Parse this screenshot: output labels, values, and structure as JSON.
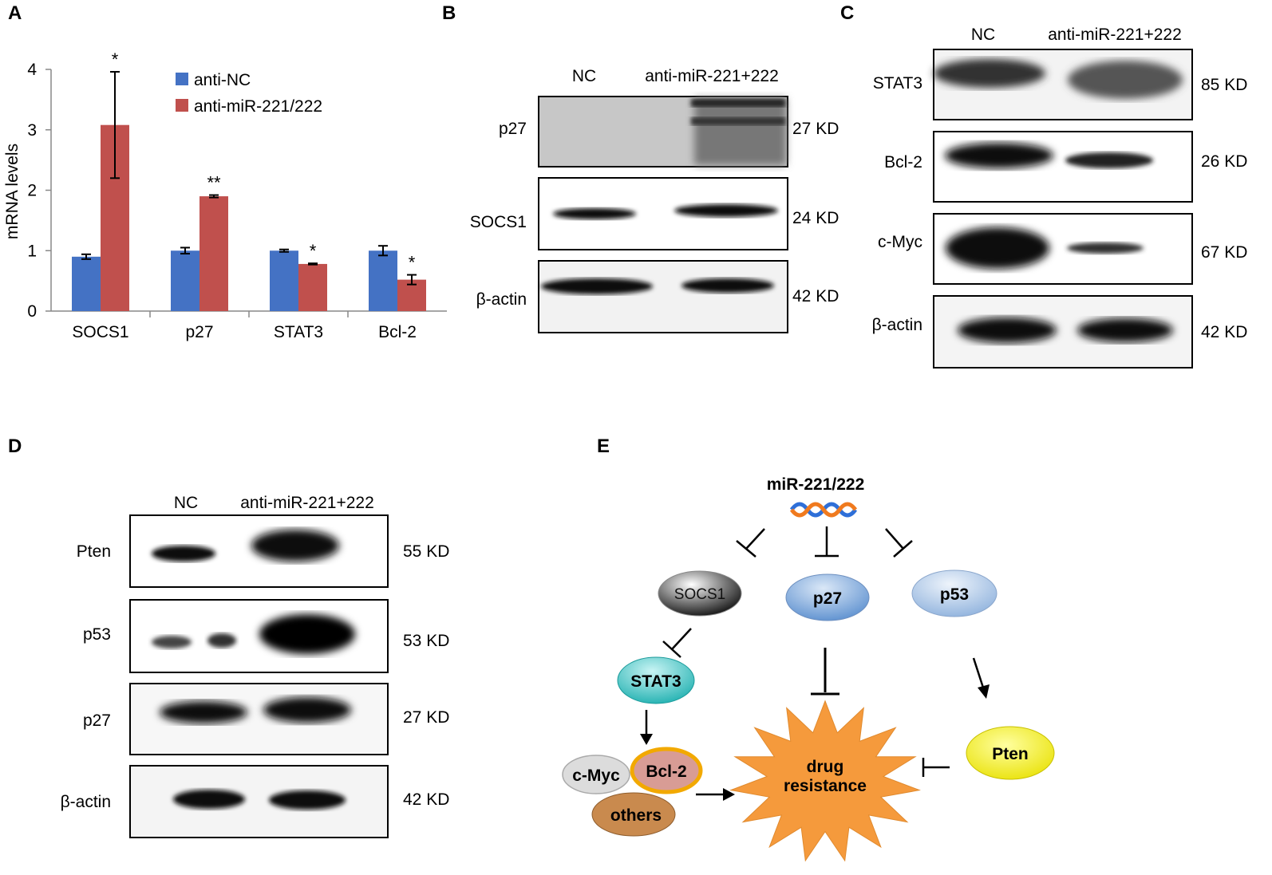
{
  "panels": {
    "a": "A",
    "b": "B",
    "c": "C",
    "d": "D",
    "e": "E"
  },
  "chart_data": {
    "type": "bar",
    "categories": [
      "SOCS1",
      "p27",
      "STAT3",
      "Bcl-2"
    ],
    "ylabel": "mRNA levels",
    "xlabel": "",
    "ylim": [
      0,
      4
    ],
    "yticks": [
      "0",
      "1",
      "2",
      "3",
      "4"
    ],
    "legend_position": "top-right",
    "series": [
      {
        "name": "anti-NC",
        "color": "#4472C4",
        "values": [
          0.9,
          1.0,
          1.0,
          1.0
        ],
        "errors": [
          0.04,
          0.05,
          0.02,
          0.08
        ]
      },
      {
        "name": "anti-miR-221/222",
        "color": "#C0504D",
        "values": [
          3.08,
          1.9,
          0.78,
          0.52
        ],
        "errors": [
          0.88,
          0.02,
          0.01,
          0.08
        ],
        "significance": [
          "*",
          "**",
          "*",
          "*"
        ]
      }
    ]
  },
  "blot_b": {
    "lanes": [
      "NC",
      "anti-miR-221+222"
    ],
    "rows": [
      {
        "protein": "p27",
        "size": "27 KD"
      },
      {
        "protein": "SOCS1",
        "size": "24 KD"
      },
      {
        "protein": "β-actin",
        "size": "42 KD"
      }
    ]
  },
  "blot_c": {
    "lanes": [
      "NC",
      "anti-miR-221+222"
    ],
    "rows": [
      {
        "protein": "STAT3",
        "size": "85 KD"
      },
      {
        "protein": "Bcl-2",
        "size": "26 KD"
      },
      {
        "protein": "c-Myc",
        "size": "67 KD"
      },
      {
        "protein": "β-actin",
        "size": "42 KD"
      }
    ]
  },
  "blot_d": {
    "lanes": [
      "NC",
      "anti-miR-221+222"
    ],
    "rows": [
      {
        "protein": "Pten",
        "size": "55 KD"
      },
      {
        "protein": "p53",
        "size": "53 KD"
      },
      {
        "protein": "p27",
        "size": "27 KD"
      },
      {
        "protein": "β-actin",
        "size": "42 KD"
      }
    ]
  },
  "diagram": {
    "mirna": "miR-221/222",
    "socs1": "SOCS1",
    "p27": "p27",
    "p53": "p53",
    "stat3": "STAT3",
    "cmyc": "c-Myc",
    "bcl2": "Bcl-2",
    "others": "others",
    "drug_line1": "drug",
    "drug_line2": "resistance",
    "pten": "Pten",
    "colors": {
      "socs1": "#555555",
      "p27": "#7BA7DB",
      "p53": "#A9C4E6",
      "stat3": "#3CC3C3",
      "cmyc": "#DDDDDD",
      "bcl2": "#D89C95",
      "bcl2_border": "#F2A900",
      "others": "#C98A4E",
      "drug": "#F59A3C",
      "pten": "#F5F000"
    }
  }
}
